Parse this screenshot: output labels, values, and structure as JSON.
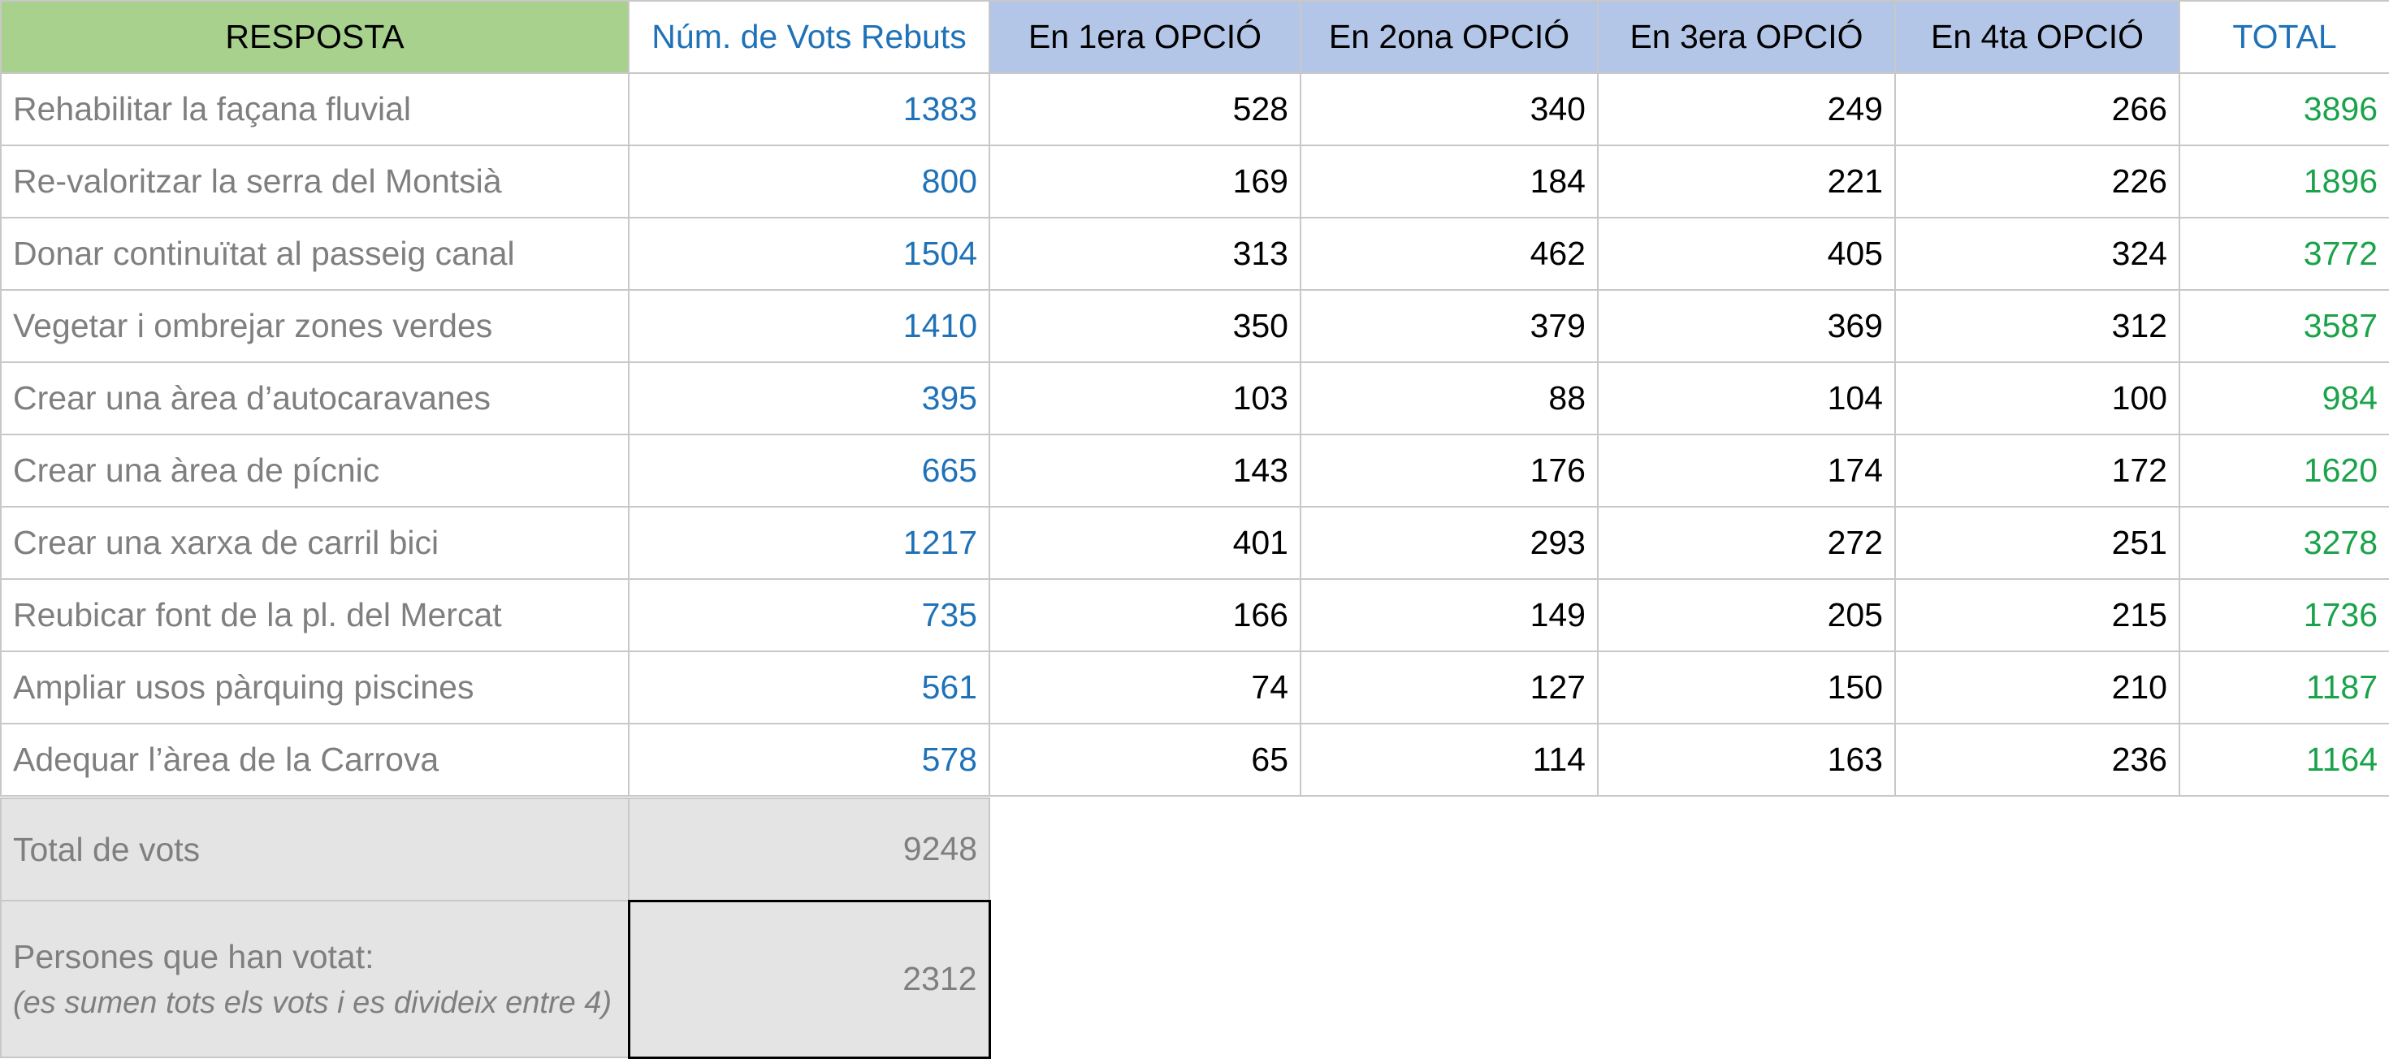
{
  "headers": {
    "resposta": "RESPOSTA",
    "vots": "Núm. de Vots Rebuts",
    "opt1": "En 1era OPCIÓ",
    "opt2": "En 2ona OPCIÓ",
    "opt3": "En 3era OPCIÓ",
    "opt4": "En 4ta OPCIÓ",
    "total": "TOTAL"
  },
  "rows": [
    {
      "resposta": "Rehabilitar la façana fluvial",
      "vots": "1383",
      "opt1": "528",
      "opt2": "340",
      "opt3": "249",
      "opt4": "266",
      "total": "3896"
    },
    {
      "resposta": "Re-valoritzar la serra del Montsià",
      "vots": "800",
      "opt1": "169",
      "opt2": "184",
      "opt3": "221",
      "opt4": "226",
      "total": "1896"
    },
    {
      "resposta": "Donar continuïtat al passeig canal",
      "vots": "1504",
      "opt1": "313",
      "opt2": "462",
      "opt3": "405",
      "opt4": "324",
      "total": "3772"
    },
    {
      "resposta": "Vegetar i ombrejar zones verdes",
      "vots": "1410",
      "opt1": "350",
      "opt2": "379",
      "opt3": "369",
      "opt4": "312",
      "total": "3587"
    },
    {
      "resposta": "Crear una àrea d’autocaravanes",
      "vots": "395",
      "opt1": "103",
      "opt2": "88",
      "opt3": "104",
      "opt4": "100",
      "total": "984"
    },
    {
      "resposta": "Crear una àrea de pícnic",
      "vots": "665",
      "opt1": "143",
      "opt2": "176",
      "opt3": "174",
      "opt4": "172",
      "total": "1620"
    },
    {
      "resposta": "Crear una xarxa de carril bici",
      "vots": "1217",
      "opt1": "401",
      "opt2": "293",
      "opt3": "272",
      "opt4": "251",
      "total": "3278"
    },
    {
      "resposta": "Reubicar font de la pl. del Mercat",
      "vots": "735",
      "opt1": "166",
      "opt2": "149",
      "opt3": "205",
      "opt4": "215",
      "total": "1736"
    },
    {
      "resposta": "Ampliar usos pàrquing piscines",
      "vots": "561",
      "opt1": "74",
      "opt2": "127",
      "opt3": "150",
      "opt4": "210",
      "total": "1187"
    },
    {
      "resposta": "Adequar l’àrea de la Carrova",
      "vots": "578",
      "opt1": "65",
      "opt2": "114",
      "opt3": "163",
      "opt4": "236",
      "total": "1164"
    }
  ],
  "summary": {
    "total_label": "Total de vots",
    "total_value": "9248",
    "persons_label": "Persones que han votat:",
    "persons_note": "(es sumen tots els vots i es divideix entre 4)",
    "persons_value": "2312"
  },
  "colors": {
    "header_resposta_bg": "#a9d18e",
    "header_option_bg": "#b4c6e7",
    "votes_text": "#1f72b8",
    "total_text": "#1aa34a",
    "label_text": "#7f7f7f",
    "summary_bg": "#e4e4e4"
  }
}
